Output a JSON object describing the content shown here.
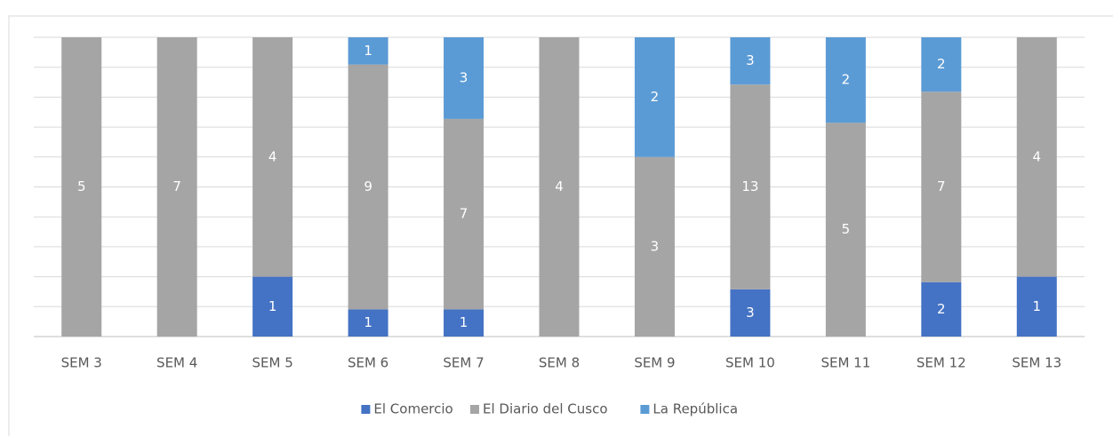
{
  "chart_data": {
    "type": "bar",
    "stacking": "percent",
    "categories": [
      "SEM 3",
      "SEM 4",
      "SEM 5",
      "SEM 6",
      "SEM 7",
      "SEM 8",
      "SEM 9",
      "SEM 10",
      "SEM 11",
      "SEM 12",
      "SEM 13"
    ],
    "series": [
      {
        "name": "El Comercio",
        "color": "#4472c4",
        "values": [
          0,
          0,
          1,
          1,
          1,
          0,
          0,
          3,
          0,
          2,
          1
        ]
      },
      {
        "name": "El Diario del Cusco",
        "color": "#a5a5a5",
        "values": [
          5,
          7,
          4,
          9,
          7,
          4,
          3,
          13,
          5,
          7,
          4
        ]
      },
      {
        "name": "La República",
        "color": "#5b9bd5",
        "values": [
          0,
          0,
          0,
          1,
          3,
          0,
          2,
          3,
          2,
          2,
          0
        ]
      }
    ],
    "ylim": [
      0,
      100
    ],
    "yticks": [
      0,
      10,
      20,
      30,
      40,
      50,
      60,
      70,
      80,
      90,
      100
    ],
    "ytick_labels": false,
    "grid": true,
    "legend": "bottom"
  }
}
